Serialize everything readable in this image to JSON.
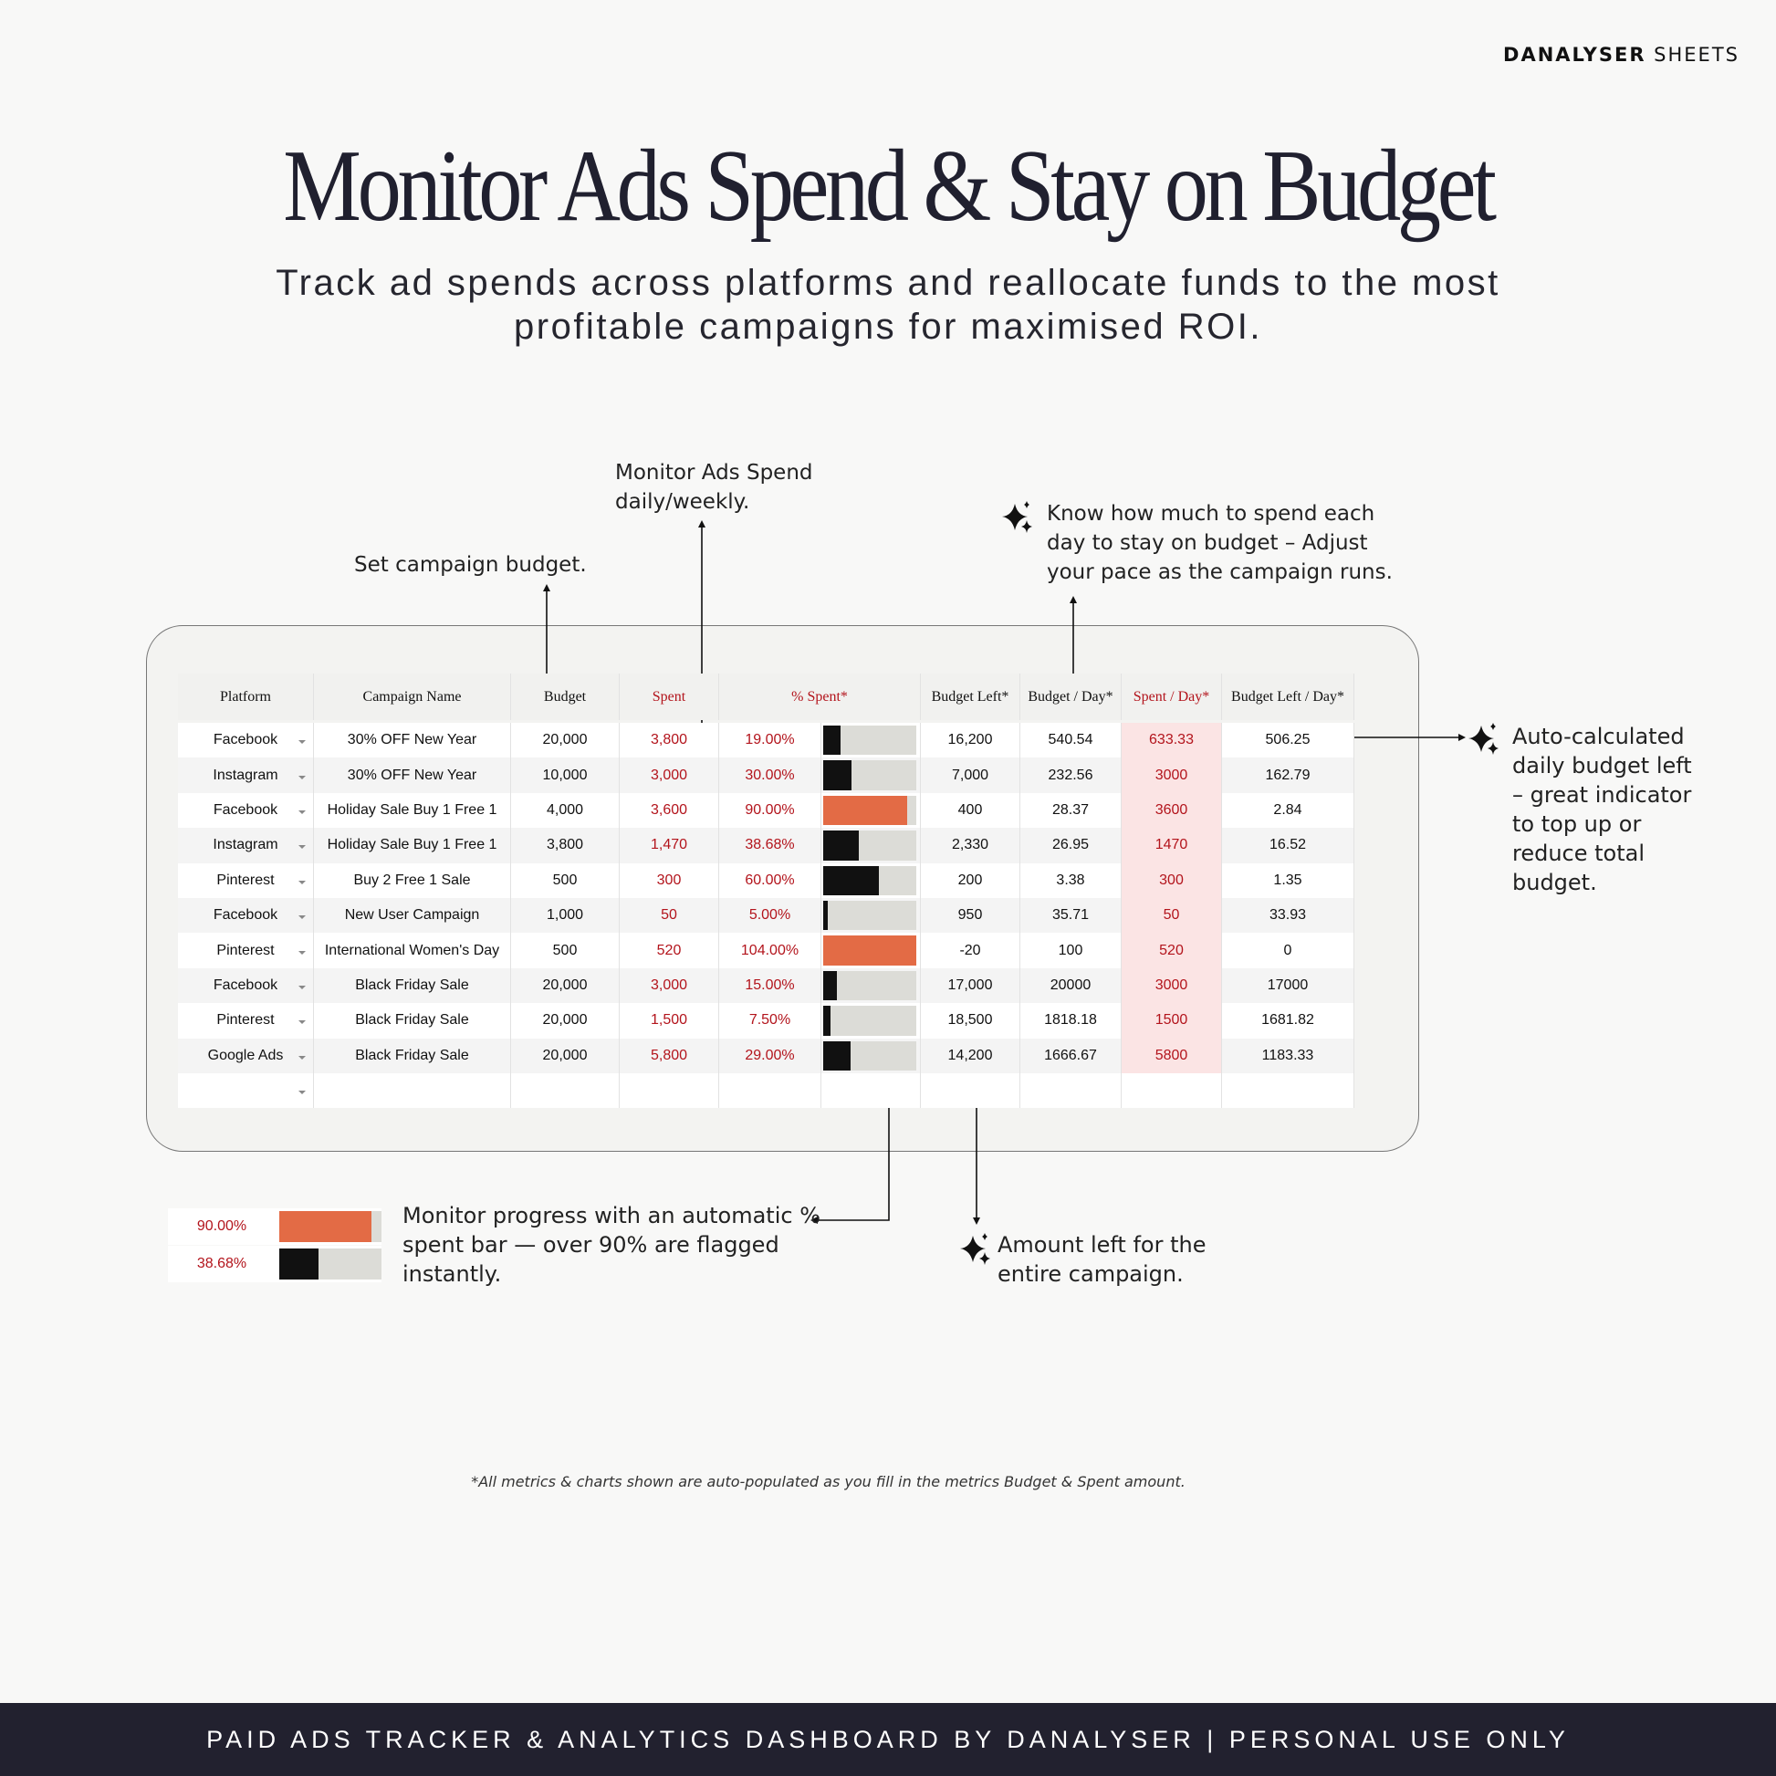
{
  "brand": {
    "bold": "DANALYSER",
    "rest": "SHEETS"
  },
  "title": "Monitor Ads Spend & Stay on Budget",
  "subtitle_lines": [
    "Track ad spends across platforms and reallocate funds to the most",
    "profitable campaigns for maximised ROI."
  ],
  "table": {
    "headers": [
      "Platform",
      "Campaign Name",
      "Budget",
      "Spent",
      "% Spent*",
      "Budget Left*",
      "Budget / Day*",
      "Spent / Day*",
      "Budget Left / Day*"
    ],
    "rows": [
      [
        "Facebook",
        "30% OFF New Year",
        "20,000",
        "3,800",
        "19.00%",
        "16,200",
        "540.54",
        "633.33",
        "506.25"
      ],
      [
        "Instagram",
        "30% OFF New Year",
        "10,000",
        "3,000",
        "30.00%",
        "7,000",
        "232.56",
        "3000",
        "162.79"
      ],
      [
        "Facebook",
        "Holiday Sale Buy 1 Free 1",
        "4,000",
        "3,600",
        "90.00%",
        "400",
        "28.37",
        "3600",
        "2.84"
      ],
      [
        "Instagram",
        "Holiday Sale Buy 1 Free 1",
        "3,800",
        "1,470",
        "38.68%",
        "2,330",
        "26.95",
        "1470",
        "16.52"
      ],
      [
        "Pinterest",
        "Buy 2 Free 1 Sale",
        "500",
        "300",
        "60.00%",
        "200",
        "3.38",
        "300",
        "1.35"
      ],
      [
        "Facebook",
        "New User Campaign",
        "1,000",
        "50",
        "5.00%",
        "950",
        "35.71",
        "50",
        "33.93"
      ],
      [
        "Pinterest",
        "International Women's Day",
        "500",
        "520",
        "104.00%",
        "-20",
        "100",
        "520",
        "0"
      ],
      [
        "Facebook",
        "Black Friday Sale",
        "20,000",
        "3,000",
        "15.00%",
        "17,000",
        "20000",
        "3000",
        "17000"
      ],
      [
        "Pinterest",
        "Black Friday Sale",
        "20,000",
        "1,500",
        "7.50%",
        "18,500",
        "1818.18",
        "1500",
        "1681.82"
      ],
      [
        "Google Ads",
        "Black Friday Sale",
        "20,000",
        "5,800",
        "29.00%",
        "14,200",
        "1666.67",
        "5800",
        "1183.33"
      ]
    ],
    "bar_colors": [
      "#111111",
      "#111111",
      "#e36b45",
      "#111111",
      "#111111",
      "#111111",
      "#e36b45",
      "#111111",
      "#111111",
      "#111111"
    ]
  },
  "annotations": {
    "spend": [
      "Monitor Ads Spend",
      "daily/weekly."
    ],
    "budget": [
      "Set campaign budget."
    ],
    "per_day": [
      "Know how much to spend each",
      "day to stay on budget –  Adjust",
      "your pace as the campaign runs."
    ],
    "left_per_day": [
      "Auto-calculated",
      "daily budget left",
      "– great indicator",
      "to top up or",
      "reduce total",
      "budget."
    ],
    "progress": [
      "Monitor progress with an automatic %",
      "spent bar — over 90% are flagged",
      "instantly."
    ],
    "left": [
      "Amount left for the",
      "entire campaign."
    ]
  },
  "footnote": "*All metrics & charts shown are auto-populated as you fill in the metrics Budget & Spent amount.",
  "footer": "PAID ADS TRACKER & ANALYTICS DASHBOARD BY DANALYSER | PERSONAL USE ONLY"
}
